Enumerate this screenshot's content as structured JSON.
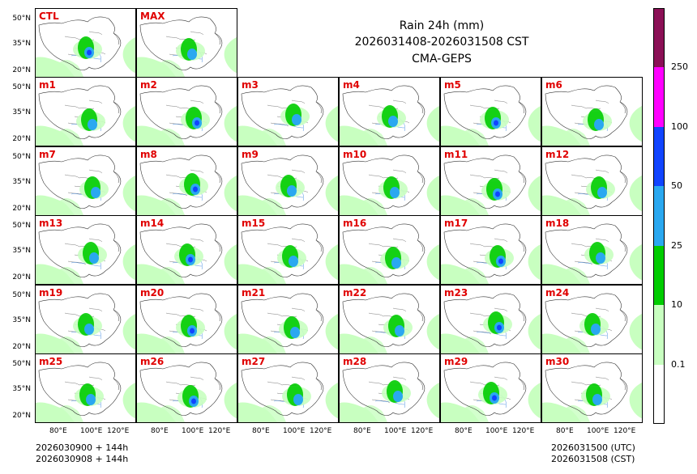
{
  "title": {
    "line1": "Rain 24h (mm)",
    "line2": "2026031408-2026031508 CST",
    "line3": "CMA-GEPS"
  },
  "panels_top": [
    "CTL",
    "MAX"
  ],
  "panels_rows": [
    [
      "m1",
      "m2",
      "m3",
      "m4",
      "m5",
      "m6"
    ],
    [
      "m7",
      "m8",
      "m9",
      "m10",
      "m11",
      "m12"
    ],
    [
      "m13",
      "m14",
      "m15",
      "m16",
      "m17",
      "m18"
    ],
    [
      "m19",
      "m20",
      "m21",
      "m22",
      "m23",
      "m24"
    ],
    [
      "m25",
      "m26",
      "m27",
      "m28",
      "m29",
      "m30"
    ]
  ],
  "lat_labels": [
    "50°N",
    "35°N",
    "20°N"
  ],
  "lon_labels": [
    "80°E",
    "100°E",
    "120°E"
  ],
  "footer": {
    "left_line1": "2026030900 + 144h",
    "left_line2": "2026030908 + 144h",
    "right_line1": "2026031500 (UTC)",
    "right_line2": "2026031508 (CST)"
  },
  "colorbar": {
    "levels": [
      "0.1",
      "10",
      "25",
      "50",
      "100",
      "250"
    ],
    "colors": [
      "#ffffff",
      "#c8ffc0",
      "#00cc00",
      "#2aa8f0",
      "#1144ff",
      "#ff00ff",
      "#8b1056"
    ]
  },
  "colors": {
    "land": "#c8ffc0",
    "light_rain": "#00cc00",
    "moderate_rain": "#2aa8f0",
    "heavy_rain": "#1144ff",
    "label_red": "#e00000"
  }
}
